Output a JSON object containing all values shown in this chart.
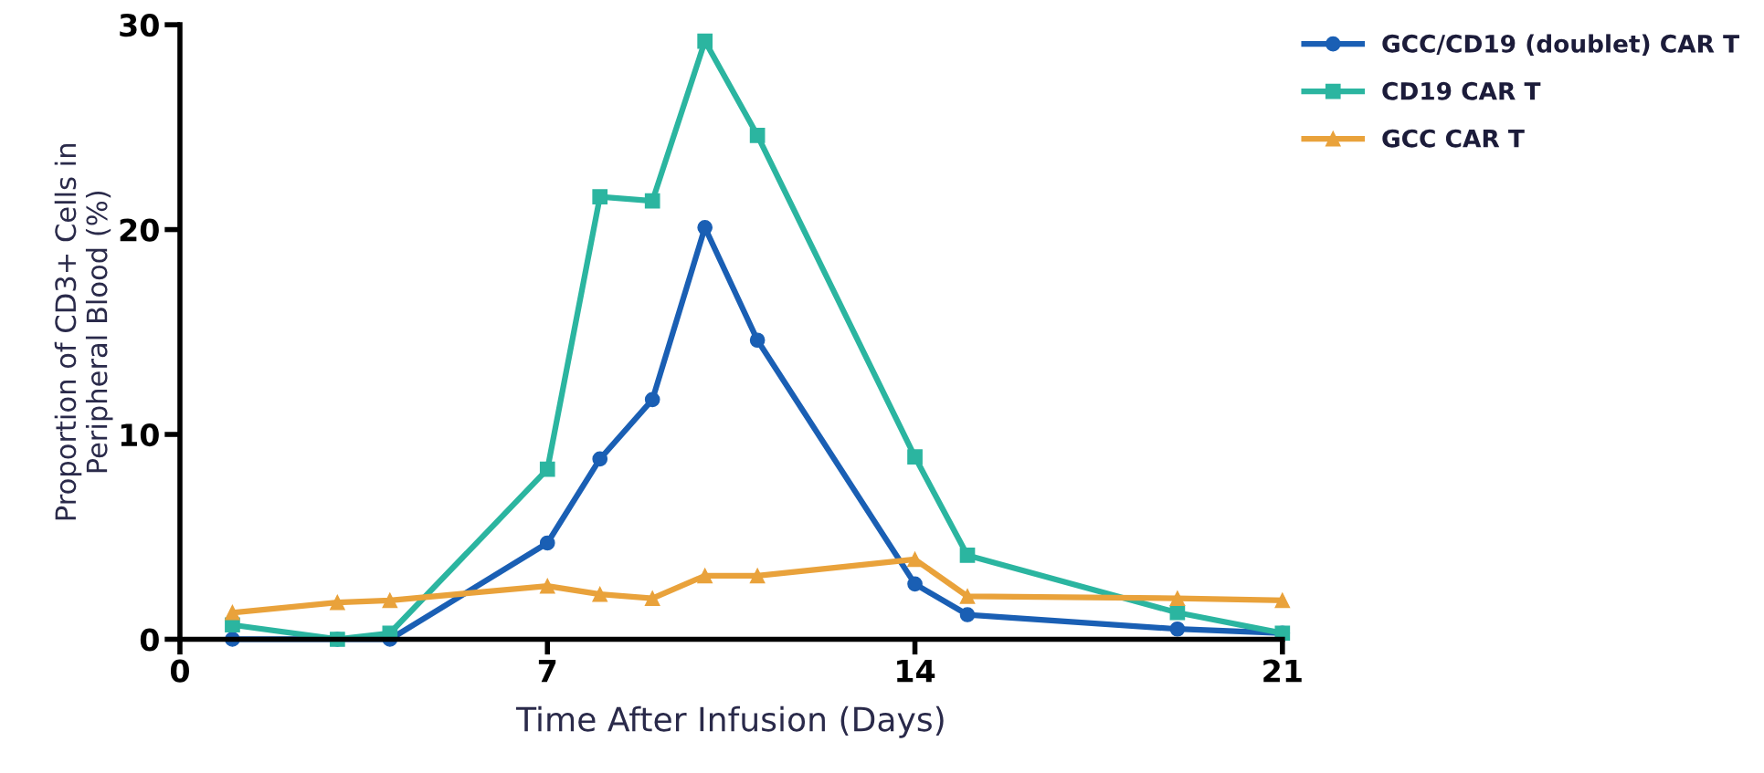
{
  "chart_data": {
    "type": "line",
    "xlabel": "Time After Infusion (Days)",
    "ylabel": "Proportion of CD3+ Cells in\nPeripheral Blood (%)",
    "x": [
      1,
      3,
      4,
      7,
      8,
      9,
      10,
      11,
      14,
      15,
      19,
      21
    ],
    "series": [
      {
        "name": "GCC/CD19 (doublet) CAR T",
        "color": "#1a5fb4",
        "marker": "circle",
        "values": [
          0,
          0,
          0,
          4.7,
          8.8,
          11.7,
          20.1,
          14.6,
          2.7,
          1.2,
          0.5,
          0.3
        ]
      },
      {
        "name": "CD19 CAR T",
        "color": "#2bb5a0",
        "marker": "square",
        "values": [
          0.7,
          0,
          0.3,
          8.3,
          21.6,
          21.4,
          29.2,
          24.6,
          8.9,
          4.1,
          1.3,
          0.3
        ]
      },
      {
        "name": "GCC CAR T",
        "color": "#e9a23b",
        "marker": "triangle",
        "values": [
          1.3,
          1.8,
          1.9,
          2.6,
          2.2,
          2.0,
          3.1,
          3.1,
          3.9,
          2.1,
          2.0,
          1.9
        ]
      }
    ],
    "xlim": [
      0,
      21
    ],
    "xticks": [
      0,
      7,
      14,
      21
    ],
    "ylim": [
      0,
      30
    ],
    "yticks": [
      0,
      10,
      20,
      30
    ],
    "grid": false,
    "legend": "top right",
    "line_style": "solid"
  }
}
